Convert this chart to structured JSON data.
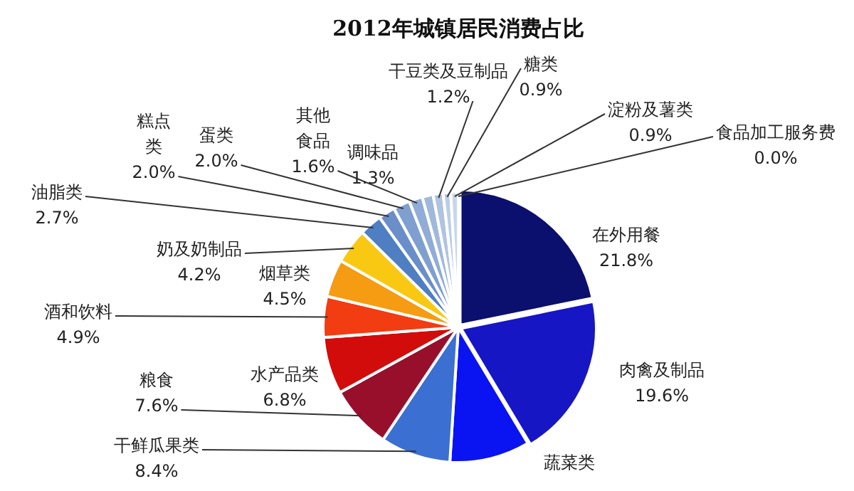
{
  "chart_data": {
    "type": "pie",
    "title": "2012年城镇居民消费占比",
    "categories": [
      "在外用餐",
      "肉禽及制品",
      "蔬菜类",
      "干鲜瓜果类",
      "粮食",
      "水产品类",
      "酒和饮料",
      "烟草类",
      "奶及奶制品",
      "油脂类",
      "糕点类",
      "蛋类",
      "其他食品",
      "调味品",
      "干豆类及豆制品",
      "糖类",
      "淀粉及薯类",
      "食品加工服务费"
    ],
    "values": [
      21.8,
      19.6,
      9.6,
      8.4,
      7.6,
      6.8,
      4.9,
      4.5,
      4.2,
      2.7,
      2.0,
      2.0,
      1.6,
      1.3,
      1.2,
      0.9,
      0.9,
      0.0
    ],
    "value_labels": [
      "21.8%",
      "19.6%",
      null,
      "8.4%",
      "7.6%",
      "6.8%",
      "4.9%",
      "4.5%",
      "4.2%",
      "2.7%",
      "2.0%",
      "2.0%",
      "1.6%",
      "1.3%",
      "1.2%",
      "0.9%",
      "0.9%",
      "0.0%"
    ],
    "colors": [
      "#0b0f6e",
      "#1616c4",
      "#0a14f2",
      "#3b6fd2",
      "#980f2c",
      "#d20b0b",
      "#f23c12",
      "#f59c12",
      "#f9c812",
      "#4f7fc2",
      "#6a8ec9",
      "#7f9fd1",
      "#90acd7",
      "#a0b8dc",
      "#b0c4e1",
      "#bccde6",
      "#c8d6ea",
      "#d4def0"
    ],
    "legend": false
  }
}
